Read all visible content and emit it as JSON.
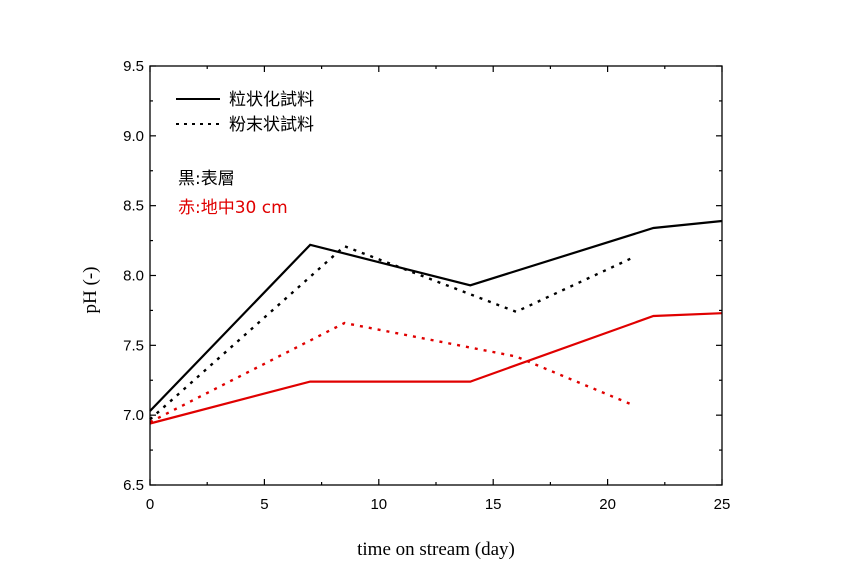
{
  "chart_data": {
    "type": "line",
    "xlabel": "time on stream (day)",
    "ylabel": "pH (-)",
    "xlim": [
      0,
      25
    ],
    "ylim": [
      6.5,
      9.5
    ],
    "x_ticks": [
      0,
      5,
      10,
      15,
      20,
      25
    ],
    "x_tick_labels": [
      "0",
      "5",
      "10",
      "15",
      "20",
      "25"
    ],
    "y_ticks": [
      6.5,
      7.0,
      7.5,
      8.0,
      8.5,
      9.0,
      9.5
    ],
    "y_tick_labels": [
      "6.5",
      "7.0",
      "7.5",
      "8.0",
      "8.5",
      "9.0",
      "9.5"
    ],
    "legend": [
      {
        "label": "粒状化試料",
        "style": "solid"
      },
      {
        "label": "粉末状試料",
        "style": "dotted"
      }
    ],
    "annotations": [
      {
        "text": "黒:表層",
        "color": "#000000"
      },
      {
        "text": "赤:地中30 cm",
        "color": "#e00000"
      }
    ],
    "series": [
      {
        "name": "粒状化試料 表層",
        "color": "#000000",
        "style": "solid",
        "x": [
          0,
          7,
          14,
          22,
          25
        ],
        "y": [
          7.03,
          8.22,
          7.93,
          8.34,
          8.39
        ]
      },
      {
        "name": "粉末状試料 表層",
        "color": "#000000",
        "style": "dotted",
        "x": [
          0,
          8.5,
          16,
          21
        ],
        "y": [
          6.97,
          8.21,
          7.74,
          8.12
        ]
      },
      {
        "name": "粒状化試料 地中30 cm",
        "color": "#e00000",
        "style": "solid",
        "x": [
          0,
          7,
          14,
          22,
          25
        ],
        "y": [
          6.94,
          7.24,
          7.24,
          7.71,
          7.73
        ]
      },
      {
        "name": "粉末状試料 地中30 cm",
        "color": "#e00000",
        "style": "dotted",
        "x": [
          0,
          8.5,
          16,
          21
        ],
        "y": [
          6.95,
          7.66,
          7.42,
          7.08
        ]
      }
    ]
  }
}
